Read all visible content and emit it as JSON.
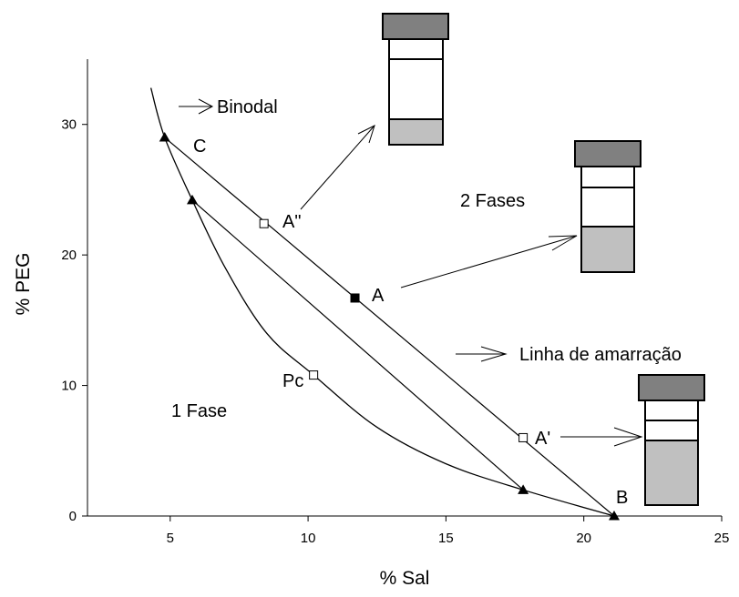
{
  "chart_data": {
    "type": "scatter",
    "title": "",
    "xlabel": "% Sal",
    "ylabel": "% PEG",
    "xlim": [
      2,
      25
    ],
    "ylim": [
      0,
      35
    ],
    "xticks": [
      5,
      10,
      15,
      20,
      25
    ],
    "yticks": [
      0,
      10,
      20,
      30
    ],
    "grid": false,
    "binodal_curve": {
      "x": [
        4.3,
        4.8,
        5.8,
        7.0,
        8.5,
        10.2,
        12.5,
        15.0,
        17.8,
        21.1
      ],
      "y": [
        32.8,
        29.0,
        24.2,
        19.0,
        14.0,
        10.8,
        6.8,
        4.0,
        2.0,
        0.0
      ]
    },
    "tie_lines": [
      {
        "x": [
          4.8,
          21.1
        ],
        "y": [
          29.0,
          0.0
        ]
      },
      {
        "x": [
          5.8,
          17.8
        ],
        "y": [
          24.2,
          2.0
        ]
      }
    ],
    "triangle_points": {
      "x": [
        4.8,
        5.8,
        17.8,
        21.1
      ],
      "y": [
        29.0,
        24.2,
        2.0,
        0.0
      ]
    },
    "open_points": {
      "x": [
        8.4,
        17.8,
        10.2
      ],
      "y": [
        22.4,
        6.0,
        10.8
      ]
    },
    "filled_points": {
      "x": [
        11.7
      ],
      "y": [
        16.7
      ]
    },
    "annotations": {
      "binodal": "Binodal",
      "c": "C",
      "a_double": "A\"",
      "a": "A",
      "a_prime": "A'",
      "b": "B",
      "pc": "Pc",
      "two_phases": "2 Fases",
      "one_phase": "1 Fase",
      "tie_line": "Linha de amarração"
    }
  },
  "colors": {
    "top_phase": "#808080",
    "bottom_phase": "#c0c0c0",
    "line": "#000000"
  }
}
